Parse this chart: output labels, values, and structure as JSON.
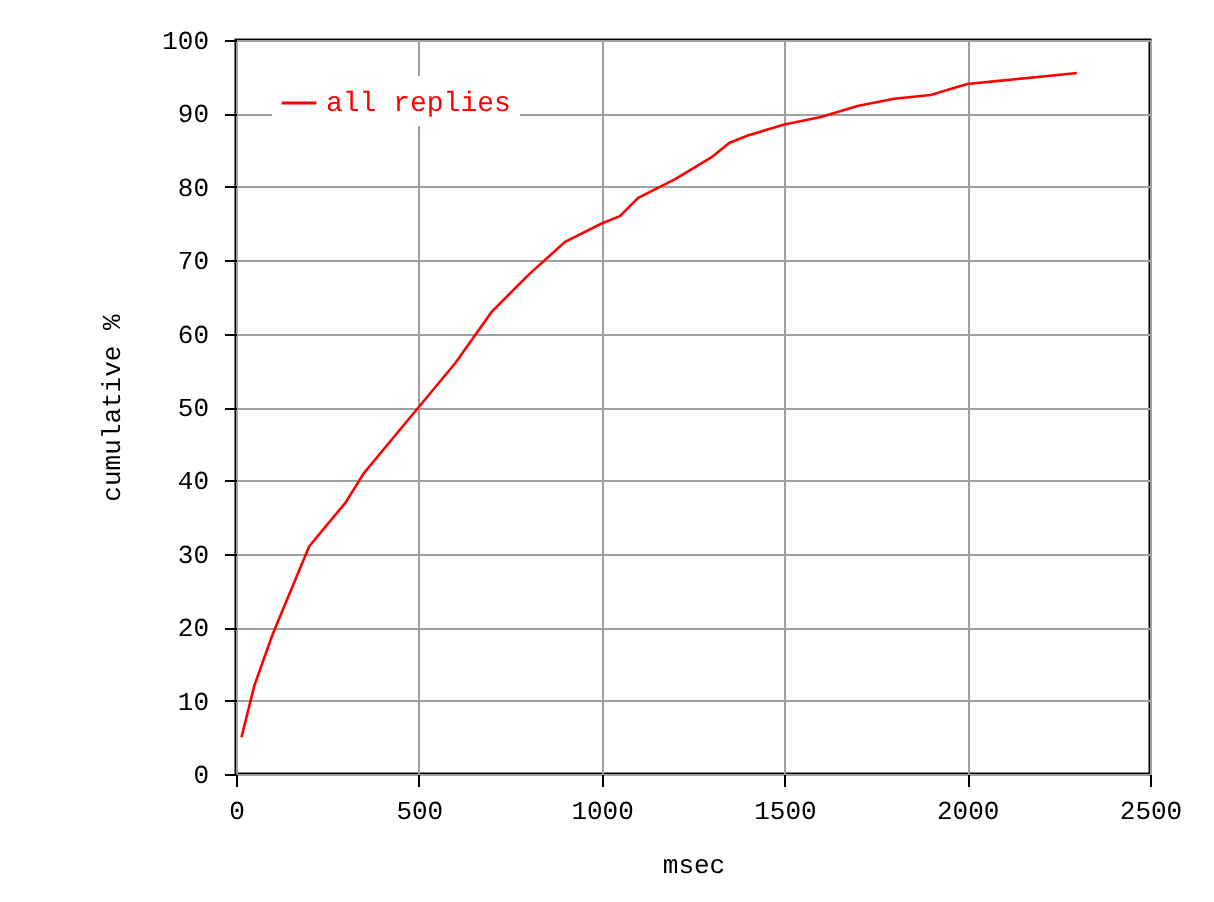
{
  "chart_data": {
    "type": "line",
    "xlabel": "msec",
    "ylabel": "cumulative %",
    "xlim": [
      0,
      2500
    ],
    "ylim": [
      0,
      100
    ],
    "xticks": [
      0,
      500,
      1000,
      1500,
      2000,
      2500
    ],
    "yticks": [
      0,
      10,
      20,
      30,
      40,
      50,
      60,
      70,
      80,
      90,
      100
    ],
    "grid": true,
    "legend": "top left",
    "series": [
      {
        "name": "all replies",
        "color": "#ff0000",
        "x": [
          15,
          50,
          100,
          150,
          200,
          250,
          300,
          350,
          400,
          500,
          600,
          700,
          800,
          900,
          1000,
          1050,
          1100,
          1200,
          1300,
          1350,
          1400,
          1500,
          1600,
          1700,
          1800,
          1900,
          2000,
          2100,
          2200,
          2300
        ],
        "values": [
          5,
          12,
          19,
          25,
          31,
          34,
          37,
          41,
          44,
          50,
          56,
          63,
          68,
          72.5,
          75,
          76,
          78.5,
          81,
          84,
          86,
          87,
          88.5,
          89.5,
          91,
          92,
          92.5,
          94,
          94.5,
          95,
          95.5
        ]
      }
    ]
  }
}
